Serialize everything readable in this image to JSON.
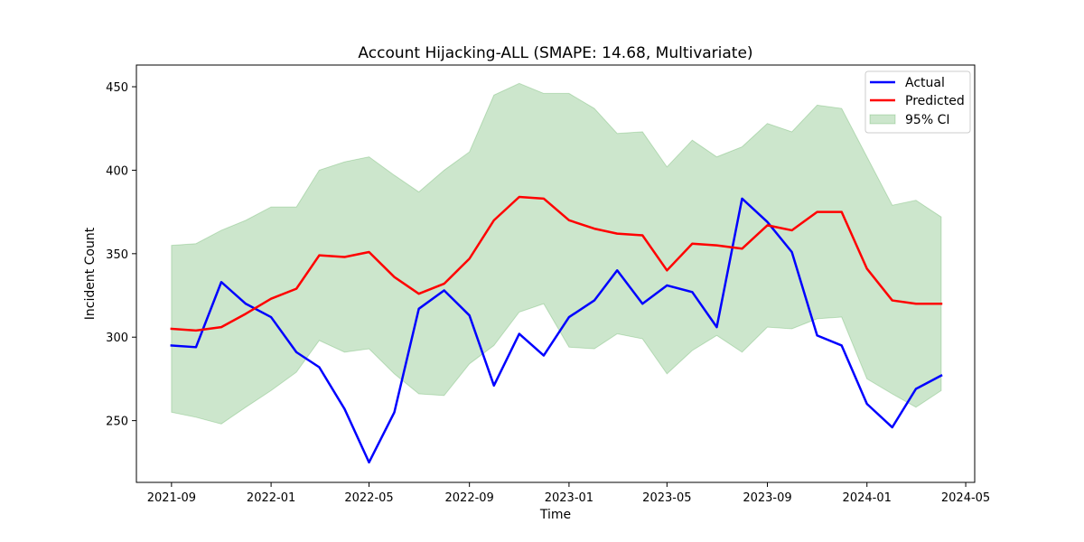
{
  "chart_data": {
    "type": "line",
    "title": "Account Hijacking-ALL (SMAPE: 14.68, Multivariate)",
    "xlabel": "Time",
    "ylabel": "Incident Count",
    "x": [
      "2021-09",
      "2021-10",
      "2021-11",
      "2021-12",
      "2022-01",
      "2022-02",
      "2022-03",
      "2022-04",
      "2022-05",
      "2022-06",
      "2022-07",
      "2022-08",
      "2022-09",
      "2022-10",
      "2022-11",
      "2022-12",
      "2023-01",
      "2023-02",
      "2023-03",
      "2023-04",
      "2023-05",
      "2023-06",
      "2023-07",
      "2023-08",
      "2023-09",
      "2023-10",
      "2023-11",
      "2023-12",
      "2024-01",
      "2024-02",
      "2024-03",
      "2024-04"
    ],
    "series": [
      {
        "name": "Actual",
        "color": "#0000ff",
        "values": [
          295,
          294,
          333,
          320,
          312,
          291,
          282,
          257,
          225,
          255,
          317,
          328,
          313,
          271,
          302,
          289,
          312,
          322,
          340,
          320,
          331,
          327,
          306,
          383,
          369,
          351,
          301,
          295,
          260,
          246,
          269,
          277
        ]
      },
      {
        "name": "Predicted",
        "color": "#ff0000",
        "values": [
          305,
          304,
          306,
          314,
          323,
          329,
          349,
          348,
          351,
          336,
          326,
          332,
          347,
          370,
          384,
          383,
          370,
          365,
          362,
          361,
          340,
          356,
          355,
          353,
          367,
          364,
          375,
          375,
          341,
          322,
          320,
          320
        ]
      }
    ],
    "ci": {
      "name": "95% CI",
      "color": "#008000",
      "lower": [
        255,
        252,
        248,
        258,
        268,
        279,
        298,
        291,
        293,
        278,
        266,
        265,
        284,
        295,
        315,
        320,
        294,
        293,
        302,
        299,
        278,
        292,
        301,
        291,
        306,
        305,
        311,
        312,
        275,
        266,
        258,
        268
      ],
      "upper": [
        355,
        356,
        364,
        370,
        378,
        378,
        400,
        405,
        408,
        397,
        387,
        400,
        411,
        445,
        452,
        446,
        446,
        437,
        422,
        423,
        402,
        418,
        408,
        414,
        428,
        423,
        439,
        437,
        408,
        379,
        382,
        372
      ]
    },
    "xticks": [
      "2021-09",
      "2022-01",
      "2022-05",
      "2022-09",
      "2023-01",
      "2023-05",
      "2023-09",
      "2024-01",
      "2024-05"
    ],
    "yticks": [
      250,
      300,
      350,
      400,
      450
    ],
    "xlim": [
      "2021-07-20",
      "2024-05-12"
    ],
    "ylim": [
      213,
      463
    ],
    "legend_position": "top-right",
    "grid": false
  }
}
